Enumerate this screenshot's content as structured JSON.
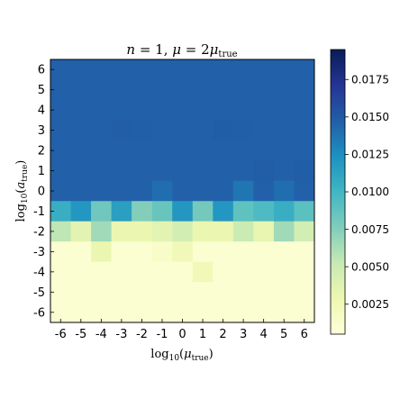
{
  "chart_data": {
    "type": "heatmap",
    "title": "n = 1,  μ = 2μ_true",
    "xlabel": "log₁₀(μ_true)",
    "ylabel": "log₁₀(a_true)",
    "x_categories": [
      "-6",
      "-5",
      "-4",
      "-3",
      "-2",
      "-1",
      "0",
      "1",
      "2",
      "3",
      "4",
      "5",
      "6"
    ],
    "y_categories": [
      "6",
      "5",
      "4",
      "3",
      "2",
      "1",
      "0",
      "-1",
      "-2",
      "-3",
      "-4",
      "-5",
      "-6"
    ],
    "colorbar": {
      "ticks": [
        "0.0025",
        "0.0050",
        "0.0075",
        "0.0100",
        "0.0125",
        "0.0150",
        "0.0175"
      ],
      "tick_values": [
        0.0025,
        0.005,
        0.0075,
        0.01,
        0.0125,
        0.015,
        0.0175
      ],
      "range": [
        0.0005,
        0.0195
      ],
      "colormap": "YlGnBu"
    },
    "values": [
      [
        0.0146,
        0.0146,
        0.0146,
        0.0146,
        0.0146,
        0.0146,
        0.0146,
        0.0146,
        0.0146,
        0.0146,
        0.0146,
        0.0146,
        0.0146
      ],
      [
        0.0146,
        0.0146,
        0.0146,
        0.0146,
        0.0146,
        0.0146,
        0.0146,
        0.0146,
        0.0146,
        0.0146,
        0.0146,
        0.0146,
        0.0146
      ],
      [
        0.0146,
        0.0146,
        0.0146,
        0.0146,
        0.0146,
        0.0146,
        0.0146,
        0.0146,
        0.0146,
        0.0146,
        0.0146,
        0.0146,
        0.0146
      ],
      [
        0.0146,
        0.0146,
        0.0146,
        0.0148,
        0.0147,
        0.0146,
        0.0146,
        0.0146,
        0.0148,
        0.0147,
        0.0146,
        0.0146,
        0.0146
      ],
      [
        0.0146,
        0.0146,
        0.0146,
        0.0146,
        0.0146,
        0.0146,
        0.0146,
        0.0146,
        0.0146,
        0.0146,
        0.0146,
        0.0146,
        0.0146
      ],
      [
        0.0146,
        0.0146,
        0.0146,
        0.0146,
        0.0146,
        0.0146,
        0.0146,
        0.0146,
        0.0146,
        0.0146,
        0.0148,
        0.0146,
        0.0148
      ],
      [
        0.0146,
        0.0146,
        0.0146,
        0.0146,
        0.0146,
        0.014,
        0.0146,
        0.0146,
        0.0146,
        0.0137,
        0.0146,
        0.014,
        0.0146
      ],
      [
        0.0105,
        0.012,
        0.0082,
        0.0115,
        0.0075,
        0.0085,
        0.012,
        0.008,
        0.012,
        0.0088,
        0.0095,
        0.0105,
        0.009
      ],
      [
        0.0055,
        0.0035,
        0.0065,
        0.003,
        0.003,
        0.0035,
        0.0045,
        0.003,
        0.003,
        0.005,
        0.0032,
        0.0065,
        0.0045
      ],
      [
        0.001,
        0.001,
        0.003,
        0.001,
        0.001,
        0.0015,
        0.0025,
        0.001,
        0.001,
        0.001,
        0.001,
        0.001,
        0.001
      ],
      [
        0.001,
        0.001,
        0.001,
        0.001,
        0.001,
        0.001,
        0.001,
        0.0025,
        0.001,
        0.001,
        0.001,
        0.001,
        0.001
      ],
      [
        0.001,
        0.001,
        0.001,
        0.001,
        0.001,
        0.001,
        0.001,
        0.001,
        0.001,
        0.001,
        0.001,
        0.001,
        0.001
      ],
      [
        0.001,
        0.001,
        0.001,
        0.001,
        0.001,
        0.001,
        0.001,
        0.001,
        0.001,
        0.001,
        0.001,
        0.001,
        0.001
      ]
    ]
  }
}
